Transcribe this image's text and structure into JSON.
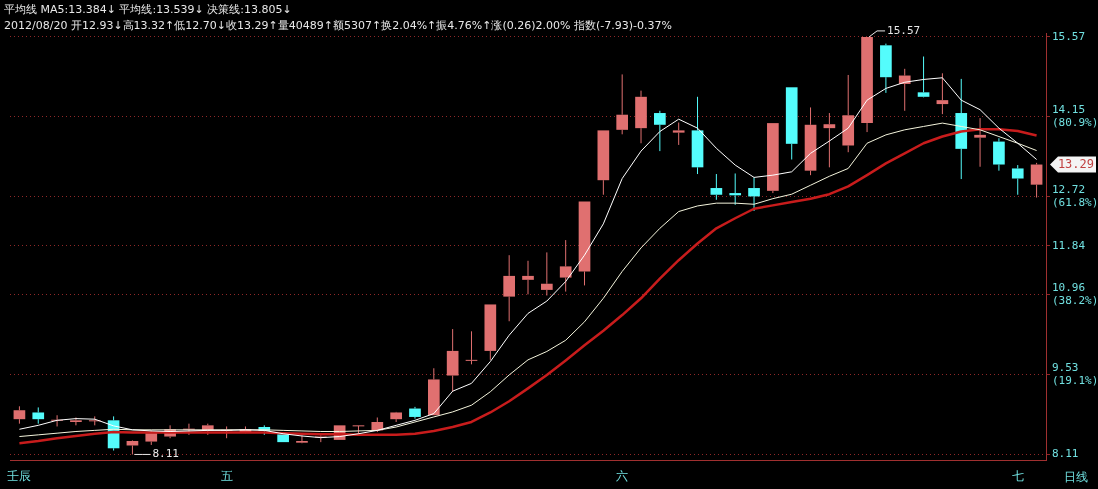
{
  "chart_data": {
    "type": "candlestick",
    "title": "平均线 MA5:13.384↓ 平均线:13.539↓ 决策线:13.805↓",
    "subtitle": "2012/08/20 开12.93↓高13.32↑低12.70↓收13.29↑量40489↑额5307↑换2.04%↑振4.76%↑涨(0.26)2.00% 指数(-7.93)-0.37%",
    "categories": [
      "壬辰",
      null,
      null,
      null,
      null,
      null,
      null,
      null,
      null,
      null,
      null,
      "五",
      null,
      null,
      null,
      null,
      null,
      null,
      null,
      null,
      null,
      null,
      null,
      null,
      null,
      null,
      null,
      null,
      null,
      null,
      null,
      null,
      "六",
      null,
      null,
      null,
      null,
      null,
      null,
      null,
      null,
      null,
      null,
      null,
      null,
      null,
      null,
      null,
      null,
      null,
      null,
      null,
      null,
      "七",
      null
    ],
    "ohlc": [
      [
        8.74,
        8.97,
        8.66,
        8.9
      ],
      [
        8.86,
        8.95,
        8.66,
        8.74
      ],
      [
        8.72,
        8.81,
        8.61,
        8.73
      ],
      [
        8.69,
        8.77,
        8.63,
        8.72
      ],
      [
        8.71,
        8.79,
        8.63,
        8.72
      ],
      [
        8.72,
        8.79,
        8.18,
        8.22
      ],
      [
        8.27,
        8.36,
        8.11,
        8.35
      ],
      [
        8.34,
        8.54,
        8.28,
        8.49
      ],
      [
        8.43,
        8.63,
        8.4,
        8.56
      ],
      [
        8.56,
        8.66,
        8.46,
        8.57
      ],
      [
        8.54,
        8.66,
        8.46,
        8.63
      ],
      [
        8.54,
        8.61,
        8.4,
        8.55
      ],
      [
        8.5,
        8.61,
        8.49,
        8.56
      ],
      [
        8.6,
        8.63,
        8.46,
        8.53
      ],
      [
        8.47,
        8.47,
        8.33,
        8.33
      ],
      [
        8.32,
        8.45,
        8.31,
        8.35
      ],
      [
        8.42,
        8.45,
        8.33,
        8.43
      ],
      [
        8.37,
        8.63,
        8.37,
        8.63
      ],
      [
        8.62,
        8.63,
        8.46,
        8.63
      ],
      [
        8.54,
        8.77,
        8.51,
        8.69
      ],
      [
        8.74,
        8.87,
        8.69,
        8.86
      ],
      [
        8.93,
        8.96,
        8.75,
        8.78
      ],
      [
        8.81,
        9.65,
        8.81,
        9.45
      ],
      [
        9.52,
        10.35,
        9.23,
        9.96
      ],
      [
        9.79,
        10.31,
        9.72,
        9.8
      ],
      [
        9.96,
        10.79,
        9.8,
        10.79
      ],
      [
        10.93,
        11.67,
        10.49,
        11.3
      ],
      [
        11.23,
        11.57,
        10.97,
        11.3
      ],
      [
        11.05,
        11.72,
        10.95,
        11.16
      ],
      [
        11.27,
        11.94,
        11.02,
        11.47
      ],
      [
        11.38,
        12.63,
        11.13,
        12.63
      ],
      [
        13.01,
        13.9,
        12.75,
        13.9
      ],
      [
        13.91,
        14.9,
        13.83,
        14.18
      ],
      [
        13.94,
        14.61,
        13.67,
        14.5
      ],
      [
        14.21,
        14.25,
        13.53,
        14.0
      ],
      [
        13.86,
        14.04,
        13.64,
        13.9
      ],
      [
        13.9,
        14.5,
        13.12,
        13.24
      ],
      [
        12.87,
        13.12,
        12.66,
        12.75
      ],
      [
        12.78,
        13.13,
        12.57,
        12.74
      ],
      [
        12.87,
        13.06,
        12.46,
        12.72
      ],
      [
        12.82,
        14.03,
        12.78,
        14.03
      ],
      [
        14.67,
        14.67,
        13.38,
        13.66
      ],
      [
        13.18,
        14.31,
        13.1,
        14.0
      ],
      [
        13.94,
        14.21,
        13.24,
        14.01
      ],
      [
        13.63,
        14.89,
        13.51,
        14.17
      ],
      [
        14.03,
        15.57,
        13.87,
        15.57
      ],
      [
        15.42,
        15.45,
        14.57,
        14.85
      ],
      [
        14.73,
        15.0,
        14.25,
        14.88
      ],
      [
        14.58,
        15.22,
        14.49,
        14.5
      ],
      [
        14.37,
        14.92,
        14.19,
        14.44
      ],
      [
        14.21,
        14.82,
        13.03,
        13.57
      ],
      [
        13.77,
        14.12,
        13.25,
        13.82
      ],
      [
        13.7,
        13.76,
        13.18,
        13.29
      ],
      [
        13.22,
        13.28,
        12.75,
        13.04
      ],
      [
        12.93,
        13.32,
        12.7,
        13.29
      ]
    ],
    "colors": [
      "#e07070",
      "#54fcfc",
      "#e07070",
      "#e07070",
      "#e07070",
      "#54fcfc",
      "#e07070",
      "#e07070",
      "#e07070",
      "#e07070",
      "#e07070",
      "#e07070",
      "#e07070",
      "#54fcfc",
      "#54fcfc",
      "#e07070",
      "#e07070",
      "#e07070",
      "#e07070",
      "#e07070",
      "#e07070",
      "#54fcfc",
      "#e07070",
      "#e07070",
      "#e07070",
      "#e07070",
      "#e07070",
      "#e07070",
      "#e07070",
      "#e07070",
      "#e07070",
      "#e07070",
      "#e07070",
      "#e07070",
      "#54fcfc",
      "#e07070",
      "#54fcfc",
      "#54fcfc",
      "#54fcfc",
      "#54fcfc",
      "#e07070",
      "#54fcfc",
      "#e07070",
      "#e07070",
      "#e07070",
      "#e07070",
      "#54fcfc",
      "#e07070",
      "#54fcfc",
      "#e07070",
      "#54fcfc",
      "#e07070",
      "#54fcfc",
      "#54fcfc",
      "#e07070"
    ],
    "series": [
      {
        "type": "line",
        "color": "#ffffff",
        "values": [
          8.56,
          8.63,
          8.72,
          8.75,
          8.74,
          8.62,
          8.55,
          8.53,
          8.52,
          8.53,
          8.54,
          8.54,
          8.55,
          8.54,
          8.48,
          8.44,
          8.41,
          8.43,
          8.48,
          8.54,
          8.63,
          8.72,
          8.84,
          9.24,
          9.38,
          9.77,
          10.24,
          10.63,
          10.85,
          11.2,
          11.67,
          12.23,
          13.04,
          13.53,
          13.88,
          14.1,
          13.94,
          13.58,
          13.28,
          13.06,
          13.1,
          13.16,
          13.49,
          13.71,
          13.94,
          14.44,
          14.65,
          14.76,
          14.81,
          14.84,
          14.44,
          14.27,
          13.94,
          13.67,
          13.38
        ]
      },
      {
        "type": "line",
        "color": "#f4f4dc",
        "values": [
          8.43,
          8.46,
          8.49,
          8.52,
          8.54,
          8.56,
          8.55,
          8.55,
          8.55,
          8.55,
          8.55,
          8.55,
          8.55,
          8.55,
          8.54,
          8.53,
          8.52,
          8.52,
          8.53,
          8.54,
          8.6,
          8.69,
          8.78,
          8.87,
          8.99,
          9.23,
          9.53,
          9.8,
          9.95,
          10.15,
          10.48,
          10.9,
          11.38,
          11.8,
          12.15,
          12.45,
          12.55,
          12.6,
          12.6,
          12.58,
          12.68,
          12.76,
          12.92,
          13.08,
          13.22,
          13.67,
          13.82,
          13.91,
          13.97,
          14.03,
          13.97,
          13.91,
          13.79,
          13.67,
          13.54
        ]
      },
      {
        "type": "line",
        "color": "#c81c1c",
        "values": [
          8.31,
          8.35,
          8.4,
          8.44,
          8.48,
          8.51,
          8.5,
          8.5,
          8.5,
          8.5,
          8.5,
          8.5,
          8.5,
          8.5,
          8.49,
          8.48,
          8.47,
          8.47,
          8.46,
          8.46,
          8.46,
          8.48,
          8.53,
          8.6,
          8.69,
          8.86,
          9.06,
          9.29,
          9.53,
          9.79,
          10.06,
          10.32,
          10.6,
          10.9,
          11.25,
          11.58,
          11.88,
          12.15,
          12.33,
          12.5,
          12.56,
          12.62,
          12.68,
          12.76,
          12.9,
          13.1,
          13.31,
          13.49,
          13.67,
          13.79,
          13.88,
          13.92,
          13.92,
          13.89,
          13.81
        ]
      }
    ],
    "ylim": [
      8.0,
      15.64
    ],
    "yticks": [
      {
        "value": 8.11,
        "label": "8.11"
      },
      {
        "value": 9.53,
        "label": "9.53 (19.1%)"
      },
      {
        "value": 10.96,
        "label": "10.96 (38.2%)"
      },
      {
        "value": 11.84,
        "label": "11.84"
      },
      {
        "value": 12.72,
        "label": "12.72 (61.8%)"
      },
      {
        "value": 14.15,
        "label": "14.15 (80.9%)"
      },
      {
        "value": 15.57,
        "label": "15.57"
      }
    ],
    "grid": "y",
    "legend": false,
    "annotations": [
      "15.57",
      "8.11",
      "13.29",
      "日线"
    ]
  }
}
